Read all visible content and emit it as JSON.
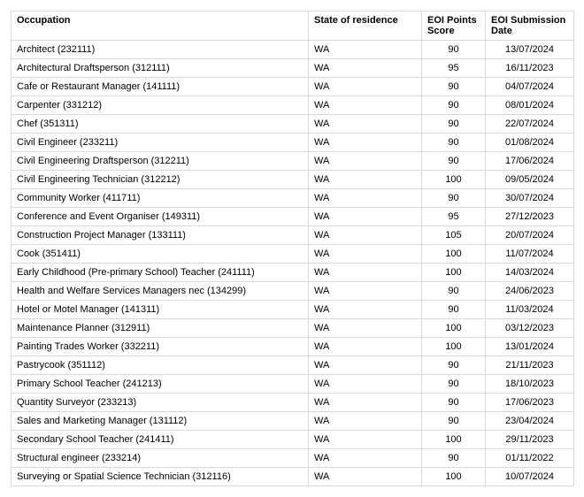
{
  "table": {
    "columns": [
      {
        "label": "Occupation",
        "align": "left"
      },
      {
        "label": "State of residence",
        "align": "left"
      },
      {
        "label": "EOI Points Score",
        "align": "center"
      },
      {
        "label": "EOI Submission Date",
        "align": "center"
      }
    ],
    "rows": [
      [
        "Architect (232111)",
        "WA",
        "90",
        "13/07/2024"
      ],
      [
        "Architectural Draftsperson (312111)",
        "WA",
        "95",
        "16/11/2023"
      ],
      [
        "Cafe or Restaurant Manager (141111)",
        "WA",
        "90",
        "04/07/2024"
      ],
      [
        "Carpenter (331212)",
        "WA",
        "90",
        "08/01/2024"
      ],
      [
        "Chef (351311)",
        "WA",
        "90",
        "22/07/2024"
      ],
      [
        "Civil Engineer (233211)",
        "WA",
        "90",
        "01/08/2024"
      ],
      [
        "Civil Engineering Draftsperson (312211)",
        "WA",
        "90",
        "17/06/2024"
      ],
      [
        "Civil Engineering Technician (312212)",
        "WA",
        "100",
        "09/05/2024"
      ],
      [
        "Community Worker (411711)",
        "WA",
        "90",
        "30/07/2024"
      ],
      [
        "Conference and Event Organiser (149311)",
        "WA",
        "95",
        "27/12/2023"
      ],
      [
        "Construction Project Manager (133111)",
        "WA",
        "105",
        "20/07/2024"
      ],
      [
        "Cook (351411)",
        "WA",
        "100",
        "11/07/2024"
      ],
      [
        "Early Childhood (Pre-primary School) Teacher (241111)",
        "WA",
        "100",
        "14/03/2024"
      ],
      [
        "Health and Welfare Services Managers nec (134299)",
        "WA",
        "90",
        "24/06/2023"
      ],
      [
        "Hotel or Motel Manager (141311)",
        "WA",
        "90",
        "11/03/2024"
      ],
      [
        "Maintenance Planner (312911)",
        "WA",
        "100",
        "03/12/2023"
      ],
      [
        "Painting Trades Worker (332211)",
        "WA",
        "100",
        "13/01/2024"
      ],
      [
        "Pastrycook (351112)",
        "WA",
        "90",
        "21/11/2023"
      ],
      [
        "Primary School Teacher (241213)",
        "WA",
        "90",
        "18/10/2023"
      ],
      [
        "Quantity Surveyor (233213)",
        "WA",
        "90",
        "17/06/2023"
      ],
      [
        "Sales and Marketing Manager (131112)",
        "WA",
        "90",
        "23/04/2024"
      ],
      [
        "Secondary School Teacher (241411)",
        "WA",
        "100",
        "29/11/2023"
      ],
      [
        "Structural engineer (233214)",
        "WA",
        "90",
        "01/11/2022"
      ],
      [
        "Surveying or Spatial Science Technician (312116)",
        "WA",
        "100",
        "10/07/2024"
      ]
    ]
  }
}
